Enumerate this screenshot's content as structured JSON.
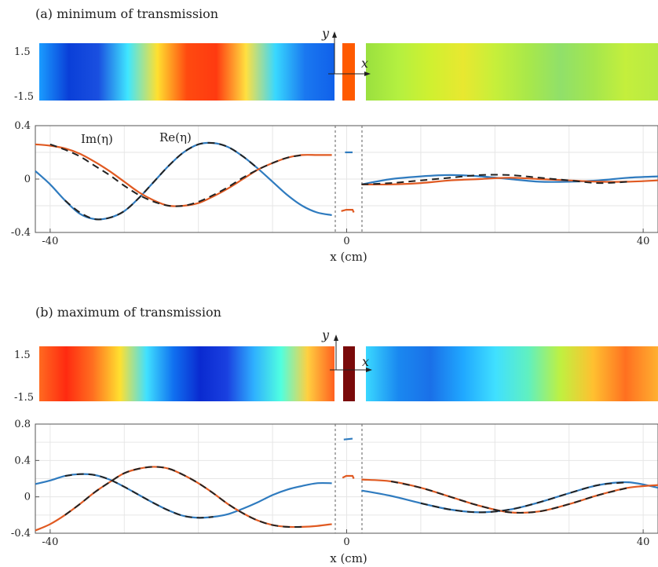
{
  "colors": {
    "re": "#2f7bbf",
    "im": "#e05a22",
    "dashed": "#222222",
    "grid": "#e6e6e6",
    "axis": "#555555",
    "divider": "#777777",
    "slab_a": "#ff5a00",
    "slab_b": "#7a0a0a"
  },
  "chart_data": [
    {
      "type": "line",
      "title": "(a) minimum of transmission",
      "xlabel": "x (cm)",
      "ylabel": "",
      "xlim": [
        -42,
        42
      ],
      "ylim": [
        -0.4,
        0.4
      ],
      "x_ticks": [
        -40,
        0,
        40
      ],
      "x_tick_labels": [
        "-40",
        "0",
        "40"
      ],
      "y_ticks": [
        -0.4,
        0,
        0.4
      ],
      "y_tick_labels": [
        "-0.4",
        "0",
        "0.4"
      ],
      "legend": [
        {
          "label": "Im(η)",
          "color": "im"
        },
        {
          "label": "Re(η)",
          "color": "re"
        }
      ],
      "heatmap": {
        "y_axis_label": "y",
        "x_axis_label": "x",
        "y_tick_labels": [
          "1.5",
          "-1.5"
        ],
        "slab_color": "slab_a",
        "left_stops": [
          "#1a9cff",
          "#0a3fd8",
          "#1a4fe0",
          "#3fe6ff",
          "#ffe030",
          "#ff4a10",
          "#ff3a10",
          "#ffe040",
          "#38d8ff",
          "#1a78f0",
          "#1060ea"
        ],
        "right_stops": [
          "#9ae03f",
          "#b4f040",
          "#d0f030",
          "#e8e830",
          "#c6ef3a",
          "#a8e84a",
          "#90e06a",
          "#a4e64e",
          "#c4ef3c",
          "#b8ea44"
        ]
      },
      "series": [
        {
          "name": "Re(η)",
          "color": "re",
          "left": {
            "x": [
              -42,
              -40,
              -38,
              -36,
              -34,
              -32,
              -30,
              -28,
              -26,
              -24,
              -22,
              -20,
              -18,
              -16,
              -14,
              -12,
              -10,
              -8,
              -6,
              -4,
              -2
            ],
            "y": [
              0.06,
              -0.04,
              -0.16,
              -0.26,
              -0.3,
              -0.29,
              -0.24,
              -0.14,
              -0.02,
              0.1,
              0.2,
              0.26,
              0.27,
              0.24,
              0.17,
              0.08,
              -0.02,
              -0.12,
              -0.2,
              -0.25,
              -0.27
            ]
          },
          "slab": {
            "x": [
              -0.2,
              1.0
            ],
            "y": [
              0.2,
              0.2
            ]
          },
          "right": {
            "x": [
              2,
              6,
              10,
              14,
              18,
              22,
              26,
              30,
              34,
              38,
              42
            ],
            "y": [
              -0.04,
              0.0,
              0.02,
              0.03,
              0.02,
              0.0,
              -0.02,
              -0.02,
              -0.01,
              0.01,
              0.02
            ]
          }
        },
        {
          "name": "Im(η)",
          "color": "im",
          "left": {
            "x": [
              -42,
              -40,
              -38,
              -36,
              -34,
              -32,
              -30,
              -28,
              -26,
              -24,
              -22,
              -20,
              -18,
              -16,
              -14,
              -12,
              -10,
              -8,
              -6,
              -4,
              -2
            ],
            "y": [
              0.26,
              0.25,
              0.23,
              0.19,
              0.13,
              0.06,
              -0.02,
              -0.1,
              -0.16,
              -0.2,
              -0.2,
              -0.18,
              -0.13,
              -0.07,
              0.0,
              0.07,
              0.12,
              0.16,
              0.18,
              0.18,
              0.18
            ]
          },
          "slab": {
            "x": [
              -0.8,
              0.0,
              1.0,
              1.2
            ],
            "y": [
              -0.24,
              -0.23,
              -0.23,
              -0.25
            ]
          },
          "right": {
            "x": [
              2,
              6,
              10,
              14,
              18,
              22,
              26,
              30,
              34,
              38,
              42
            ],
            "y": [
              -0.04,
              -0.04,
              -0.03,
              -0.01,
              0.0,
              0.01,
              0.0,
              -0.01,
              -0.02,
              -0.02,
              -0.01
            ]
          }
        },
        {
          "name": "",
          "color": "dashed",
          "dashed": true,
          "left": {
            "x": [
              -40,
              -38,
              -36,
              -34,
              -32,
              -30,
              -28,
              -26,
              -24,
              -22,
              -20,
              -18,
              -16,
              -14,
              -12,
              -10,
              -8,
              -6
            ],
            "y": [
              0.26,
              0.22,
              0.17,
              0.1,
              0.03,
              -0.05,
              -0.12,
              -0.17,
              -0.2,
              -0.2,
              -0.17,
              -0.12,
              -0.06,
              0.01,
              0.07,
              0.12,
              0.16,
              0.18
            ]
          },
          "right": {
            "x": [
              2,
              6,
              10,
              14,
              18,
              22,
              26,
              30,
              34,
              38
            ],
            "y": [
              -0.04,
              -0.03,
              -0.01,
              0.01,
              0.03,
              0.03,
              0.01,
              -0.01,
              -0.03,
              -0.02
            ]
          }
        },
        {
          "name": "",
          "color": "dashed",
          "dashed": true,
          "left": {
            "x": [
              -38,
              -36,
              -34,
              -32,
              -30,
              -28,
              -26,
              -24,
              -22,
              -20,
              -18,
              -16,
              -14,
              -12
            ],
            "y": [
              -0.16,
              -0.25,
              -0.3,
              -0.29,
              -0.24,
              -0.14,
              -0.02,
              0.1,
              0.2,
              0.26,
              0.27,
              0.24,
              0.17,
              0.08
            ]
          }
        }
      ]
    },
    {
      "type": "line",
      "title": "(b) maximum of transmission",
      "xlabel": "x (cm)",
      "ylabel": "",
      "xlim": [
        -42,
        42
      ],
      "ylim": [
        -0.4,
        0.8
      ],
      "x_ticks": [
        -40,
        0,
        40
      ],
      "x_tick_labels": [
        "-40",
        "0",
        "40"
      ],
      "y_ticks": [
        -0.4,
        0,
        0.4,
        0.8
      ],
      "y_tick_labels": [
        "-0.4",
        "0",
        "0.4",
        "0.8"
      ],
      "heatmap": {
        "y_axis_label": "y",
        "x_axis_label": "x",
        "y_tick_labels": [
          "1.5",
          "-1.5"
        ],
        "slab_color": "slab_b",
        "left_stops": [
          "#ff6a20",
          "#ff2a10",
          "#ff7020",
          "#ffe030",
          "#40e0ff",
          "#1070f0",
          "#0a2ad0",
          "#1a40e0",
          "#2fb0ff",
          "#50ffe0",
          "#ffd040",
          "#ff6020"
        ],
        "right_stops": [
          "#3ad8ff",
          "#1a88f0",
          "#1a70e8",
          "#20a8ff",
          "#40e0ff",
          "#60f0c0",
          "#c0f040",
          "#ffc030",
          "#ff7020",
          "#ffb030"
        ]
      },
      "series": [
        {
          "name": "",
          "color": "re",
          "left": {
            "x": [
              -42,
              -40,
              -38,
              -36,
              -34,
              -32,
              -30,
              -28,
              -26,
              -24,
              -22,
              -20,
              -18,
              -16,
              -14,
              -12,
              -10,
              -8,
              -6,
              -4,
              -2
            ],
            "y": [
              0.14,
              0.18,
              0.23,
              0.25,
              0.24,
              0.19,
              0.11,
              0.02,
              -0.07,
              -0.15,
              -0.21,
              -0.23,
              -0.22,
              -0.19,
              -0.13,
              -0.06,
              0.02,
              0.08,
              0.12,
              0.15,
              0.15
            ]
          },
          "slab": {
            "x": [
              -0.4,
              1.0
            ],
            "y": [
              0.63,
              0.64
            ]
          },
          "right": {
            "x": [
              2,
              6,
              10,
              14,
              18,
              22,
              26,
              30,
              34,
              38,
              42
            ],
            "y": [
              0.07,
              0.01,
              -0.07,
              -0.14,
              -0.17,
              -0.14,
              -0.06,
              0.04,
              0.13,
              0.16,
              0.1
            ]
          }
        },
        {
          "name": "",
          "color": "im",
          "left": {
            "x": [
              -42,
              -40,
              -38,
              -36,
              -34,
              -32,
              -30,
              -28,
              -26,
              -24,
              -22,
              -20,
              -18,
              -16,
              -14,
              -12,
              -10,
              -8,
              -6,
              -4,
              -2
            ],
            "y": [
              -0.37,
              -0.3,
              -0.2,
              -0.08,
              0.05,
              0.16,
              0.26,
              0.31,
              0.33,
              0.31,
              0.24,
              0.15,
              0.04,
              -0.08,
              -0.18,
              -0.26,
              -0.31,
              -0.33,
              -0.33,
              -0.32,
              -0.3
            ]
          },
          "slab": {
            "x": [
              -0.6,
              0.0,
              1.0,
              1.2
            ],
            "y": [
              0.21,
              0.23,
              0.23,
              0.2
            ]
          },
          "right": {
            "x": [
              2,
              6,
              10,
              14,
              18,
              22,
              26,
              30,
              34,
              38,
              42
            ],
            "y": [
              0.19,
              0.17,
              0.1,
              0.0,
              -0.1,
              -0.17,
              -0.16,
              -0.08,
              0.02,
              0.1,
              0.13
            ]
          }
        },
        {
          "name": "",
          "color": "dashed",
          "dashed": true,
          "left": {
            "x": [
              -38,
              -36,
              -34,
              -32,
              -30,
              -28,
              -26,
              -24,
              -22,
              -20,
              -18,
              -16,
              -14,
              -12,
              -10,
              -8,
              -6
            ],
            "y": [
              -0.2,
              -0.08,
              0.05,
              0.16,
              0.26,
              0.31,
              0.33,
              0.31,
              0.24,
              0.15,
              0.04,
              -0.08,
              -0.18,
              -0.26,
              -0.31,
              -0.33,
              -0.33
            ]
          },
          "right": {
            "x": [
              6,
              10,
              14,
              18,
              22,
              26,
              30,
              34,
              38
            ],
            "y": [
              0.17,
              0.1,
              0.0,
              -0.1,
              -0.17,
              -0.16,
              -0.08,
              0.02,
              0.1
            ]
          }
        },
        {
          "name": "",
          "color": "dashed",
          "dashed": true,
          "left": {
            "x": [
              -38,
              -36,
              -34,
              -32,
              -30,
              -28,
              -26,
              -24,
              -22,
              -20,
              -18
            ],
            "y": [
              0.23,
              0.25,
              0.24,
              0.19,
              0.11,
              0.02,
              -0.07,
              -0.15,
              -0.21,
              -0.23,
              -0.22
            ]
          },
          "right": {
            "x": [
              10,
              14,
              18,
              22,
              26,
              30,
              34,
              38
            ],
            "y": [
              -0.07,
              -0.14,
              -0.17,
              -0.14,
              -0.06,
              0.04,
              0.13,
              0.16
            ]
          }
        }
      ]
    }
  ]
}
